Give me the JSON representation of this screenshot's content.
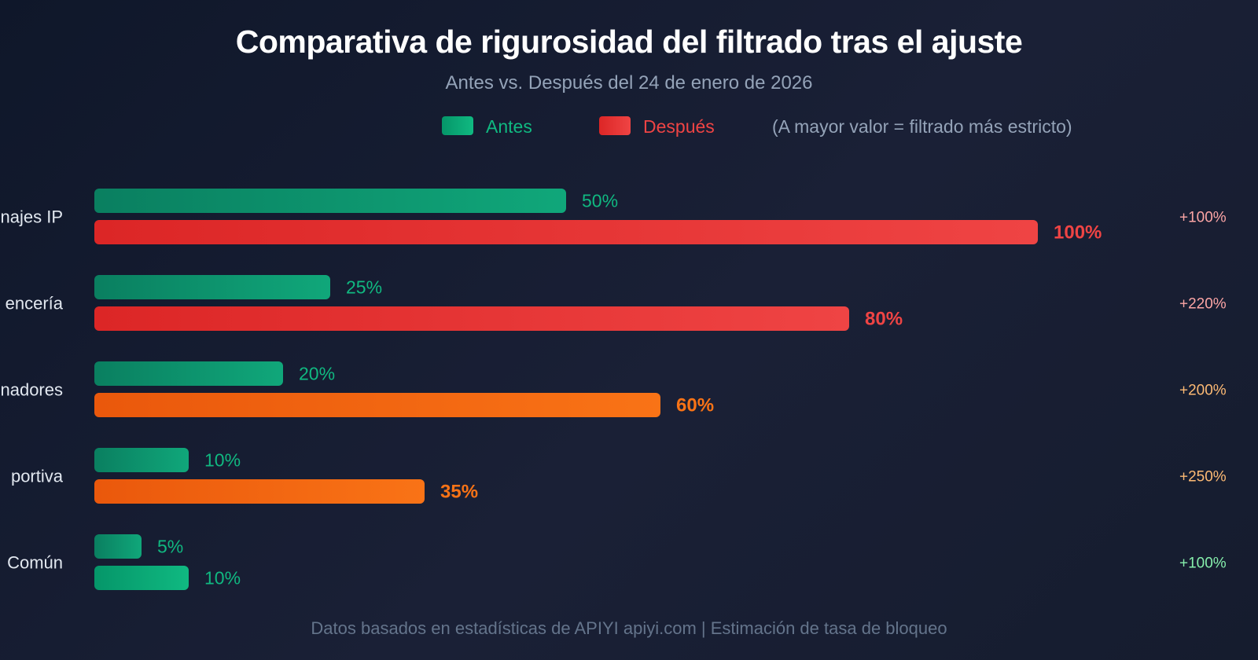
{
  "title": "Comparativa de rigurosidad del filtrado tras el ajuste",
  "subtitle": "Antes vs. Después del 24 de enero de 2026",
  "legend": {
    "before": "Antes",
    "after": "Después",
    "note": "(A mayor valor = filtrado más estricto)"
  },
  "footer": "Datos basados en estadísticas de APIYI apiyi.com | Estimación de tasa de bloqueo",
  "colors": {
    "before": "#10b981",
    "after_high": "#ef4444",
    "after_mid": "#f97316",
    "after_low": "#10b981"
  },
  "chart_data": {
    "type": "bar",
    "orientation": "horizontal",
    "title": "Comparativa de rigurosidad del filtrado tras el ajuste",
    "subtitle": "Antes vs. Después del 24 de enero de 2026",
    "xlim": [
      0,
      100
    ],
    "unit": "%",
    "categories": [
      "najes IP",
      "encería",
      "nadores",
      "portiva",
      "Común"
    ],
    "series": [
      {
        "name": "Antes",
        "values": [
          50,
          25,
          20,
          10,
          5
        ],
        "labels": [
          "50%",
          "25%",
          "20%",
          "10%",
          "5%"
        ]
      },
      {
        "name": "Después",
        "values": [
          100,
          80,
          60,
          35,
          10
        ],
        "labels": [
          "100%",
          "80%",
          "60%",
          "35%",
          "10%"
        ]
      }
    ],
    "after_color_keys": [
      "after_high",
      "after_high",
      "after_mid",
      "after_mid",
      "after_low"
    ],
    "change_labels": [
      "+100%",
      "+220%",
      "+200%",
      "+250%",
      "+100%"
    ],
    "change_colors": [
      "#fca5a5",
      "#fca5a5",
      "#fdba74",
      "#fdba74",
      "#86efac"
    ]
  }
}
